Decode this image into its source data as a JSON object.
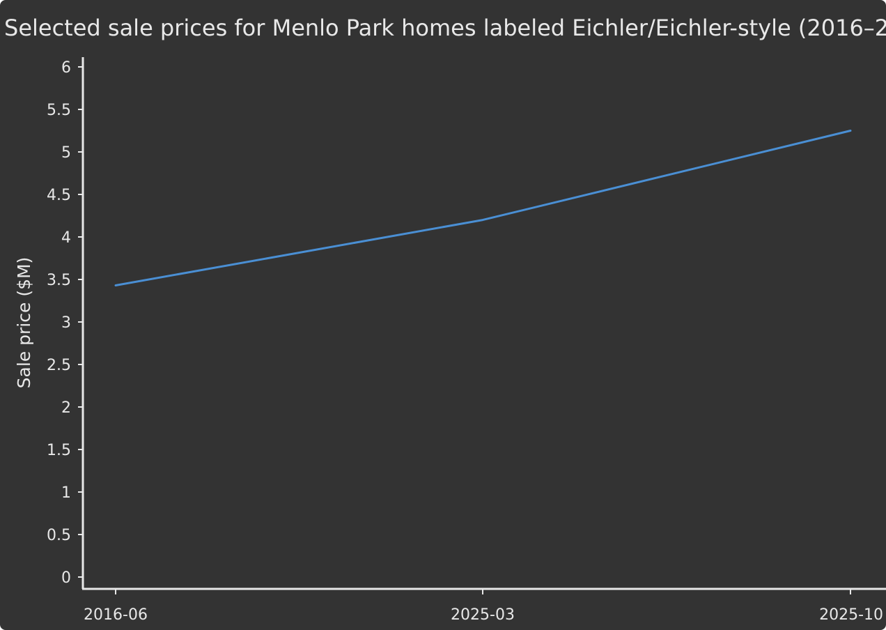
{
  "chart_data": {
    "type": "line",
    "title": "Selected sale prices for Menlo Park homes labeled Eichler/Eichler-style (2016–2",
    "xlabel": "",
    "ylabel": "Sale price ($M)",
    "categories": [
      "2016-06",
      "2025-03",
      "2025-10"
    ],
    "series": [
      {
        "name": "",
        "values": [
          3.43,
          4.2,
          5.25
        ]
      }
    ],
    "yticks": [
      "0",
      "0.5",
      "1",
      "1.5",
      "2",
      "2.5",
      "3",
      "3.5",
      "4",
      "4.5",
      "5",
      "5.5",
      "6"
    ],
    "ylim": [
      0,
      6
    ],
    "grid": false,
    "legend": "none",
    "colors": {
      "background": "#333333",
      "line": "#4a8fd4",
      "axis": "#e8e8e8",
      "text": "#e8e8e8"
    }
  }
}
